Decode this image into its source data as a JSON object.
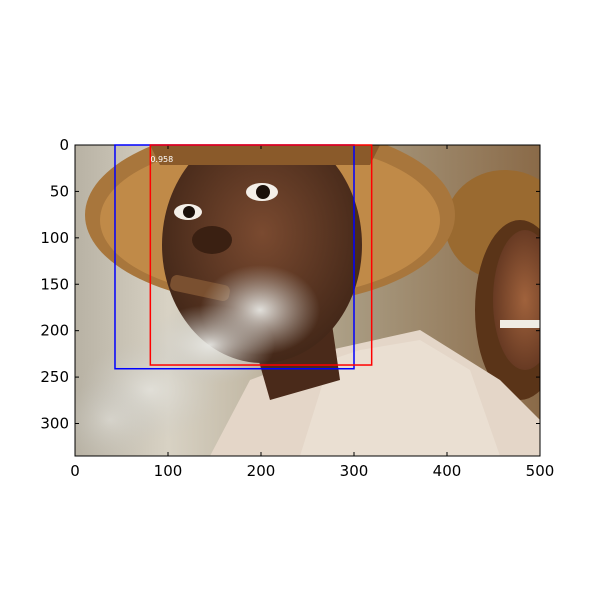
{
  "image": {
    "description_icon": "photo-man-smoking-cigar-straw-hat",
    "width": 500,
    "height": 335
  },
  "axes": {
    "xlim": [
      0,
      500
    ],
    "ylim": [
      335,
      0
    ],
    "xticks": [
      0,
      100,
      200,
      300,
      400,
      500
    ],
    "yticks": [
      0,
      50,
      100,
      150,
      200,
      250,
      300
    ],
    "xtick_labels": [
      "0",
      "100",
      "200",
      "300",
      "400",
      "500"
    ],
    "ytick_labels": [
      "0",
      "50",
      "100",
      "150",
      "200",
      "250",
      "300"
    ]
  },
  "boxes": [
    {
      "name": "blue-box",
      "color": "#0000ff",
      "x1": 43,
      "y1": 0,
      "x2": 300,
      "y2": 241
    },
    {
      "name": "red-box",
      "color": "#ff0000",
      "x1": 81,
      "y1": 0,
      "x2": 319,
      "y2": 237,
      "score": "0.958"
    }
  ]
}
